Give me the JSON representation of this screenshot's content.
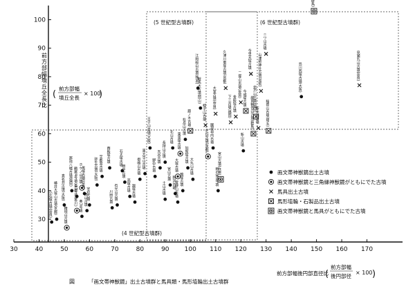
{
  "chart_data": {
    "type": "scatter",
    "title": "「画文帯神獣鏡」出土古墳群と馬具類・馬形埴輪出土古墳群",
    "figure_label": "図",
    "xlabel": "前方部幅後円部直径比",
    "xlabel_formula": {
      "num": "前方部幅",
      "den": "後円部径",
      "mult": "× 100"
    },
    "ylabel": "前方部幅墳丘全長比",
    "ylabel_formula": {
      "num": "前方部幅",
      "den": "墳丘全長",
      "mult": "× 100"
    },
    "xlim": [
      30,
      180
    ],
    "ylim": [
      22,
      104
    ],
    "x_ticks": [
      30,
      40,
      50,
      60,
      70,
      80,
      90,
      100,
      110,
      120,
      130,
      140,
      150,
      160,
      170
    ],
    "y_ticks": [
      30,
      40,
      50,
      60,
      70,
      80,
      90,
      100
    ],
    "groups": [
      {
        "name": "(4 世紀型古墳群)"
      },
      {
        "name": "(5 世紀型古墳群)"
      },
      {
        "name": "(6 世紀型古墳群)"
      }
    ],
    "legend": [
      {
        "symbol": "dot",
        "label": "画文帯神獣鏡出土古墳"
      },
      {
        "symbol": "ringdot",
        "label": "画文帯神獣鏡と三角縁神獣鏡がともにでた古墳"
      },
      {
        "symbol": "x",
        "label": "馬具出土古墳"
      },
      {
        "symbol": "boxx",
        "label": "馬形埴輪・石製品出土古墳"
      },
      {
        "symbol": "boxdot",
        "label": "画文帯神獣鏡と馬具がともにでた古墳"
      }
    ],
    "points": [
      {
        "x": 45,
        "y": 29,
        "symbol": "dot",
        "label": "小石塚古墳(奈良)"
      },
      {
        "x": 47,
        "y": 30,
        "symbol": "dot",
        "label": "椿井大塚山古墳(京都)"
      },
      {
        "x": 50,
        "y": 35,
        "symbol": "dot",
        "label": "真名井古墳(大阪)"
      },
      {
        "x": 51,
        "y": 27,
        "symbol": "ringdot",
        "label": "権現山古墳"
      },
      {
        "x": 53,
        "y": 40,
        "symbol": "dot",
        "label": "那珂八幡古墳(福岡)"
      },
      {
        "x": 55,
        "y": 33,
        "symbol": "ringdot",
        "label": "13号墳(香川)"
      },
      {
        "x": 55,
        "y": 38,
        "symbol": "dot",
        "label": "鶴尾4号墳(香川)"
      },
      {
        "x": 57,
        "y": 31,
        "symbol": "dot",
        "label": "奥3号墳"
      },
      {
        "x": 57,
        "y": 41,
        "symbol": "ringdot",
        "label": "ホケノ山古墳"
      },
      {
        "x": 58,
        "y": 39,
        "symbol": "dot",
        "label": "黒塚古墳(奈良)"
      },
      {
        "x": 59,
        "y": 33,
        "symbol": "dot",
        "label": "西山古墳"
      },
      {
        "x": 60,
        "y": 35,
        "symbol": "dot",
        "label": "宇垣古墳"
      },
      {
        "x": 63,
        "y": 42,
        "symbol": "dot",
        "label": "弥生古墳(大阪)"
      },
      {
        "x": 65,
        "y": 45,
        "symbol": "dot",
        "label": "宇都宮古墳"
      },
      {
        "x": 68,
        "y": 48,
        "symbol": "dot",
        "label": "西殿塚古墳"
      },
      {
        "x": 69,
        "y": 34,
        "symbol": "dot",
        "label": "川田古墳"
      },
      {
        "x": 71,
        "y": 35,
        "symbol": "dot",
        "label": "石光山古墳"
      },
      {
        "x": 73,
        "y": 47,
        "symbol": "dot",
        "label": "石太塚古墳"
      },
      {
        "x": 74,
        "y": 43,
        "symbol": "dot",
        "label": "田中古墳"
      },
      {
        "x": 76,
        "y": 38,
        "symbol": "dot",
        "label": "高塚古墳"
      },
      {
        "x": 78,
        "y": 36,
        "symbol": "dot",
        "label": "越塚古墳"
      },
      {
        "x": 80,
        "y": 44,
        "symbol": "dot",
        "label": "御嶋山古墳"
      },
      {
        "x": 82,
        "y": 46,
        "symbol": "dot",
        "label": "東大寺山古墳"
      },
      {
        "x": 84,
        "y": 55,
        "symbol": "dot",
        "label": "王子山古墳(大阪)"
      },
      {
        "x": 86,
        "y": 45,
        "symbol": "dot",
        "label": "野中古墳"
      },
      {
        "x": 88,
        "y": 48,
        "symbol": "dot",
        "label": "瓦谷古墳"
      },
      {
        "x": 90,
        "y": 50,
        "symbol": "dot",
        "label": "長持山古墳"
      },
      {
        "x": 90,
        "y": 37,
        "symbol": "dot",
        "label": "土山古墳"
      },
      {
        "x": 92,
        "y": 42,
        "symbol": "dot",
        "label": "宮山古墳"
      },
      {
        "x": 93,
        "y": 55,
        "symbol": "dot",
        "label": "北山古墳"
      },
      {
        "x": 94,
        "y": 39,
        "symbol": "dot",
        "label": "新沢古墳"
      },
      {
        "x": 95,
        "y": 45,
        "symbol": "ringdot",
        "label": "大塚古墳"
      },
      {
        "x": 95,
        "y": 36,
        "symbol": "dot",
        "label": "雪野山古墳"
      },
      {
        "x": 96,
        "y": 53,
        "symbol": "ringdot",
        "label": "東車塚古墳"
      },
      {
        "x": 97,
        "y": 40,
        "symbol": "dot",
        "label": "鏡塚古墳"
      },
      {
        "x": 98,
        "y": 58,
        "symbol": "dot",
        "label": "松岳山古墳"
      },
      {
        "x": 99,
        "y": 48,
        "symbol": "dot",
        "label": "加賀塚古墳"
      },
      {
        "x": 100,
        "y": 61,
        "symbol": "boxx",
        "label": "藤ノ木古墳"
      },
      {
        "x": 101,
        "y": 44,
        "symbol": "dot",
        "label": "大丸山古墳"
      },
      {
        "x": 103,
        "y": 76,
        "symbol": "dot",
        "label": "江田船山古墳(熊本)"
      },
      {
        "x": 104,
        "y": 69,
        "symbol": "dot",
        "label": "鞍馬大古墳(岡山)"
      },
      {
        "x": 106,
        "y": 63,
        "symbol": "x",
        "label": "蛭子山古墳"
      },
      {
        "x": 107,
        "y": 52,
        "symbol": "ringdot",
        "label": "芝山古墳(京都)"
      },
      {
        "x": 109,
        "y": 55,
        "symbol": "dot",
        "label": "園部垣内古墳"
      },
      {
        "x": 110,
        "y": 67,
        "symbol": "x",
        "label": "大室古墳(奈良)"
      },
      {
        "x": 111,
        "y": 40,
        "symbol": "dot",
        "label": "雨の宮1号墳"
      },
      {
        "x": 112,
        "y": 44,
        "symbol": "boxdot",
        "label": "宮山古墳(兵庫)"
      },
      {
        "x": 114,
        "y": 76,
        "symbol": "x",
        "label": "久津川車塚古墳(京都)"
      },
      {
        "x": 116,
        "y": 64,
        "symbol": "x",
        "label": "下三古墳(福岡)"
      },
      {
        "x": 118,
        "y": 66,
        "symbol": "x",
        "label": "金鈴塚古墳"
      },
      {
        "x": 120,
        "y": 71,
        "symbol": "x",
        "label": "二塚山古墳(佐賀)"
      },
      {
        "x": 121,
        "y": 54,
        "symbol": "dot",
        "label": "新山古墳"
      },
      {
        "x": 122,
        "y": 68,
        "symbol": "boxx",
        "label": "今城塚古墳"
      },
      {
        "x": 124,
        "y": 81,
        "symbol": "x",
        "label": "今里大塚古墳"
      },
      {
        "x": 125,
        "y": 60,
        "symbol": "boxx",
        "label": "綿貫観音山古墳(群馬)"
      },
      {
        "x": 126,
        "y": 66,
        "symbol": "boxx",
        "label": "岩戸山古墳(福岡)"
      },
      {
        "x": 127,
        "y": 62,
        "symbol": "x",
        "label": "断夫山古墳"
      },
      {
        "x": 128,
        "y": 75,
        "symbol": "x",
        "label": "山津照神社古墳(滋賀)"
      },
      {
        "x": 130,
        "y": 88,
        "symbol": "x",
        "label": "ニワ山古墳"
      },
      {
        "x": 131,
        "y": 61,
        "symbol": "boxx",
        "label": "稲荷山古墳(埼玉)"
      },
      {
        "x": 144,
        "y": 73,
        "symbol": "dot",
        "label": "島川西塚古墳(大阪)"
      },
      {
        "x": 149,
        "y": 103,
        "symbol": "boxdot",
        "label": "八幡観音塚古墳(群馬)"
      },
      {
        "x": 167,
        "y": 77,
        "symbol": "x",
        "label": "見瀬丸山古墳(奈良)"
      }
    ]
  }
}
